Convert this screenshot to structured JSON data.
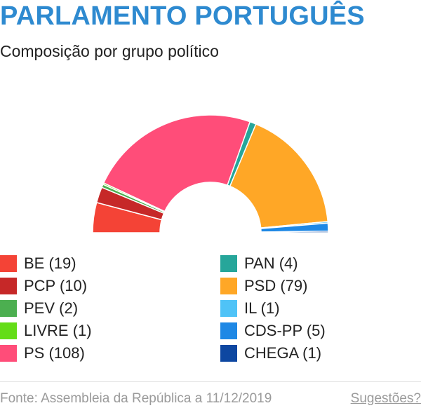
{
  "header": {
    "title": "PARLAMENTO PORTUGUÊS",
    "subtitle": "Composição por grupo político"
  },
  "chart_data": {
    "type": "pie",
    "variant": "hemicycle",
    "series": [
      {
        "name": "BE",
        "value": 19,
        "label": "BE (19)",
        "color": "#f44336"
      },
      {
        "name": "PCP",
        "value": 10,
        "label": "PCP (10)",
        "color": "#c62828"
      },
      {
        "name": "PEV",
        "value": 2,
        "label": "PEV (2)",
        "color": "#4caf50"
      },
      {
        "name": "LIVRE",
        "value": 1,
        "label": "LIVRE (1)",
        "color": "#64dd17"
      },
      {
        "name": "PS",
        "value": 108,
        "label": "PS (108)",
        "color": "#ff4d79"
      },
      {
        "name": "PAN",
        "value": 4,
        "label": "PAN (4)",
        "color": "#26a69a"
      },
      {
        "name": "PSD",
        "value": 79,
        "label": "PSD (79)",
        "color": "#ffa726"
      },
      {
        "name": "IL",
        "value": 1,
        "label": "IL (1)",
        "color": "#4fc3f7"
      },
      {
        "name": "CDS-PP",
        "value": 5,
        "label": "CDS-PP (5)",
        "color": "#1e88e5"
      },
      {
        "name": "CHEGA",
        "value": 1,
        "label": "CHEGA (1)",
        "color": "#0d47a1"
      }
    ],
    "legend_position": "bottom"
  },
  "footer": {
    "source": "Fonte: Assembleia da República a 11/12/2019",
    "suggestions": "Sugestões?"
  }
}
